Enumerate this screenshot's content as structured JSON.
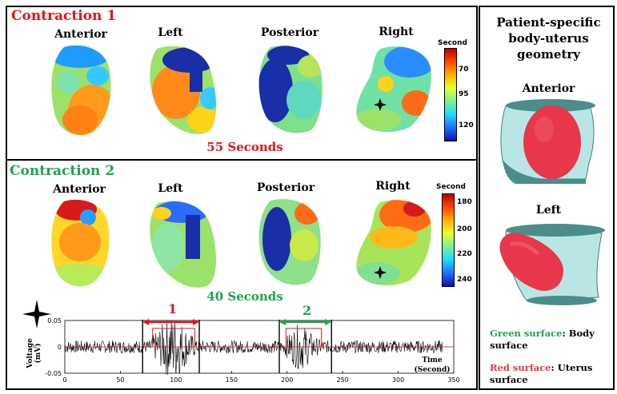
{
  "panel1": {
    "title": "Contraction 1",
    "title_color": "#e8131a",
    "views": [
      "Anterior",
      "Left",
      "Posterior",
      "Right"
    ],
    "seconds": "55 Seconds",
    "colorbar": {
      "title": "Second",
      "ticks": [
        "70",
        "95",
        "120"
      ]
    }
  },
  "panel2": {
    "title": "Contraction 2",
    "title_color": "#1aa64a",
    "views": [
      "Anterior",
      "Left",
      "Posterior",
      "Right"
    ],
    "seconds": "40 Seconds",
    "colorbar": {
      "title": "Second",
      "ticks": [
        "180",
        "200",
        "220",
        "240"
      ]
    }
  },
  "signal": {
    "ylabel_line1": "Voltage",
    "ylabel_line2": "(mV)",
    "xlabel_line1": "Time",
    "xlabel_line2": "(Second)",
    "y_ticks": [
      "0.05",
      "0",
      "-0.05"
    ],
    "x_ticks": [
      "0",
      "50",
      "100",
      "150",
      "200",
      "250",
      "300",
      "350"
    ],
    "marker1": "1",
    "marker2": "2",
    "marker1_color": "#e8131a",
    "marker2_color": "#1aa64a"
  },
  "side": {
    "title_line1": "Patient-specific",
    "title_line2": "body-uterus",
    "title_line3": "geometry",
    "view1": "Anterior",
    "view2": "Left",
    "legend_green_key": "Green surface",
    "legend_green_text": ": Body surface",
    "legend_red_key": "Red surface",
    "legend_red_text": ": Uterus surface",
    "green_color": "#1aa64a",
    "red_color": "#e8364a"
  }
}
